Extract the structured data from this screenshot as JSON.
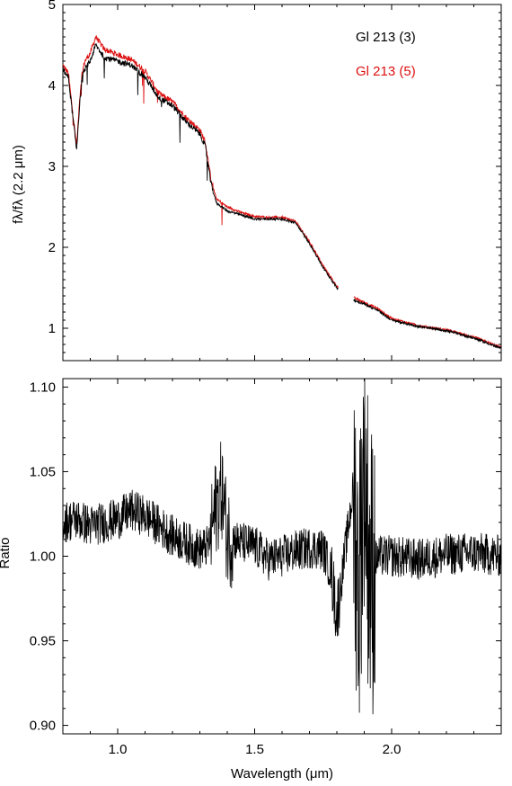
{
  "chart_data": [
    {
      "type": "line",
      "panel": "top",
      "ylabel": "fλ/fλ (2.2 μm)",
      "ylim": [
        0.6,
        5.0
      ],
      "xlim": [
        0.8,
        2.4
      ],
      "yticks": [
        1,
        2,
        3,
        4,
        5
      ],
      "ytick_labels": [
        "1",
        "2",
        "3",
        "4",
        "5"
      ],
      "legend_placement": "top-right",
      "series": [
        {
          "name": "Gl 213 (3)",
          "color": "#000000",
          "x": [
            0.8,
            0.82,
            0.84,
            0.85,
            0.86,
            0.87,
            0.88,
            0.9,
            0.92,
            0.95,
            1.0,
            1.05,
            1.1,
            1.15,
            1.2,
            1.25,
            1.3,
            1.32,
            1.34,
            1.36,
            1.4,
            1.45,
            1.5,
            1.55,
            1.6,
            1.65,
            1.7,
            1.75,
            1.8,
            1.86,
            1.9,
            1.95,
            2.0,
            2.1,
            2.2,
            2.3,
            2.4
          ],
          "y": [
            4.2,
            4.1,
            3.5,
            3.2,
            3.7,
            4.1,
            4.2,
            4.3,
            4.5,
            4.35,
            4.3,
            4.25,
            4.1,
            3.85,
            3.75,
            3.55,
            3.4,
            3.25,
            2.8,
            2.55,
            2.45,
            2.4,
            2.35,
            2.35,
            2.35,
            2.3,
            2.05,
            1.75,
            1.5,
            1.35,
            1.3,
            1.22,
            1.1,
            1.02,
            0.97,
            0.88,
            0.75
          ]
        },
        {
          "name": "Gl 213 (5)",
          "color": "#dd1111",
          "x": [
            0.8,
            0.82,
            0.84,
            0.85,
            0.86,
            0.87,
            0.88,
            0.9,
            0.92,
            0.95,
            1.0,
            1.05,
            1.1,
            1.15,
            1.2,
            1.25,
            1.3,
            1.32,
            1.34,
            1.36,
            1.4,
            1.45,
            1.5,
            1.55,
            1.6,
            1.65,
            1.7,
            1.75,
            1.8,
            1.86,
            1.9,
            1.95,
            2.0,
            2.1,
            2.2,
            2.3,
            2.4
          ],
          "y": [
            4.25,
            4.15,
            3.55,
            3.25,
            3.75,
            4.15,
            4.3,
            4.4,
            4.6,
            4.45,
            4.38,
            4.32,
            4.18,
            3.9,
            3.8,
            3.6,
            3.45,
            3.3,
            2.85,
            2.6,
            2.5,
            2.43,
            2.38,
            2.37,
            2.37,
            2.32,
            2.07,
            1.77,
            1.52,
            1.38,
            1.32,
            1.24,
            1.12,
            1.03,
            0.98,
            0.89,
            0.76
          ]
        }
      ]
    },
    {
      "type": "line",
      "panel": "bottom",
      "xlabel": "Wavelength (μm)",
      "ylabel": "Ratio",
      "xlim": [
        0.8,
        2.4
      ],
      "ylim": [
        0.895,
        1.105
      ],
      "xticks": [
        1.0,
        1.5,
        2.0
      ],
      "xtick_labels": [
        "1.0",
        "1.5",
        "2.0"
      ],
      "yticks": [
        0.9,
        0.95,
        1.0,
        1.05,
        1.1
      ],
      "ytick_labels": [
        "0.90",
        "0.95",
        "1.00",
        "1.05",
        "1.10"
      ],
      "series": [
        {
          "color": "#000000",
          "x": [
            0.8,
            0.85,
            0.9,
            0.95,
            1.0,
            1.05,
            1.1,
            1.15,
            1.2,
            1.25,
            1.3,
            1.33,
            1.36,
            1.38,
            1.4,
            1.45,
            1.5,
            1.55,
            1.6,
            1.65,
            1.7,
            1.75,
            1.78,
            1.8,
            1.86,
            1.88,
            1.9,
            1.92,
            1.95,
            2.0,
            2.1,
            2.2,
            2.3,
            2.4
          ],
          "y": [
            1.02,
            1.022,
            1.018,
            1.02,
            1.022,
            1.027,
            1.024,
            1.018,
            1.012,
            1.008,
            1.004,
            1.006,
            1.03,
            1.04,
            1.012,
            1.008,
            1.006,
            0.998,
            1.0,
            1.003,
            1.005,
            1.004,
            0.99,
            0.965,
            1.04,
            0.98,
            1.06,
            0.99,
            1.0,
            1.0,
            0.998,
            1.001,
            1.002,
            1.0
          ]
        }
      ]
    }
  ]
}
